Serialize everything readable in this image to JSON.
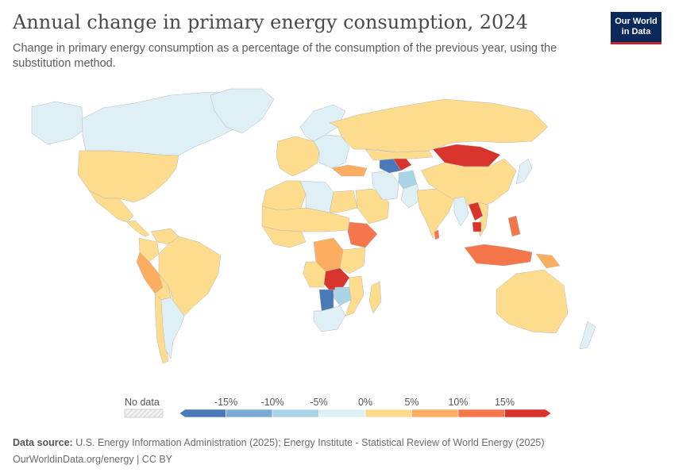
{
  "title": "Annual change in primary energy consumption, 2024",
  "subtitle": "Change in primary energy consumption as a percentage of the consumption of the previous year, using the substitution method.",
  "logo": {
    "line1": "Our World",
    "line2": "in Data"
  },
  "legend": {
    "no_data_label": "No data",
    "ticks": [
      "-15%",
      "-10%",
      "-5%",
      "0%",
      "5%",
      "10%",
      "15%"
    ],
    "bins": [
      {
        "label": "below -15%",
        "color": "#4a79b8"
      },
      {
        "label": "-15% to -10%",
        "color": "#7aaad3"
      },
      {
        "label": "-10% to -5%",
        "color": "#a9d4e6"
      },
      {
        "label": "-5% to 0%",
        "color": "#def0f6"
      },
      {
        "label": "0% to 5%",
        "color": "#fddc8e"
      },
      {
        "label": "5% to 10%",
        "color": "#fcad5f"
      },
      {
        "label": "10% to 15%",
        "color": "#f4764a"
      },
      {
        "label": "above 15%",
        "color": "#d9342b"
      }
    ]
  },
  "regions": [
    {
      "name": "Canada",
      "bin": 3
    },
    {
      "name": "Alaska",
      "bin": 3
    },
    {
      "name": "Greenland",
      "bin": 3
    },
    {
      "name": "United States",
      "bin": 4
    },
    {
      "name": "Mexico",
      "bin": 4
    },
    {
      "name": "Central America",
      "bin": 4
    },
    {
      "name": "Colombia",
      "bin": 4
    },
    {
      "name": "Venezuela",
      "bin": 4
    },
    {
      "name": "Brazil",
      "bin": 4
    },
    {
      "name": "Peru",
      "bin": 5
    },
    {
      "name": "Bolivia",
      "bin": 4
    },
    {
      "name": "Argentina",
      "bin": 3
    },
    {
      "name": "Chile",
      "bin": 4
    },
    {
      "name": "Western Europe",
      "bin": 4
    },
    {
      "name": "Scandinavia",
      "bin": 3
    },
    {
      "name": "Eastern Europe",
      "bin": 3
    },
    {
      "name": "Russia",
      "bin": 4
    },
    {
      "name": "Turkey",
      "bin": 5
    },
    {
      "name": "North Africa",
      "bin": 4
    },
    {
      "name": "Libya",
      "bin": 3
    },
    {
      "name": "Egypt",
      "bin": 4
    },
    {
      "name": "Sahel",
      "bin": 4
    },
    {
      "name": "West Africa",
      "bin": 4
    },
    {
      "name": "Ethiopia",
      "bin": 6
    },
    {
      "name": "DR Congo",
      "bin": 5
    },
    {
      "name": "Zambia",
      "bin": 7
    },
    {
      "name": "Zimbabwe",
      "bin": 2
    },
    {
      "name": "Botswana",
      "bin": 0
    },
    {
      "name": "South Africa",
      "bin": 3
    },
    {
      "name": "Madagascar",
      "bin": 4
    },
    {
      "name": "Saudi Arabia",
      "bin": 4
    },
    {
      "name": "Iran",
      "bin": 3
    },
    {
      "name": "Turkmenistan",
      "bin": 0
    },
    {
      "name": "Uzbekistan",
      "bin": 7
    },
    {
      "name": "Afghanistan",
      "bin": 2
    },
    {
      "name": "Pakistan",
      "bin": 3
    },
    {
      "name": "India",
      "bin": 4
    },
    {
      "name": "Sri Lanka",
      "bin": 6
    },
    {
      "name": "Mongolia",
      "bin": 7
    },
    {
      "name": "China",
      "bin": 4
    },
    {
      "name": "Japan",
      "bin": 3
    },
    {
      "name": "Myanmar",
      "bin": 3
    },
    {
      "name": "Laos",
      "bin": 7
    },
    {
      "name": "Vietnam",
      "bin": 4
    },
    {
      "name": "Cambodia",
      "bin": 7
    },
    {
      "name": "Philippines",
      "bin": 6
    },
    {
      "name": "Indonesia",
      "bin": 6
    },
    {
      "name": "Papua New Guinea",
      "bin": 5
    },
    {
      "name": "Australia",
      "bin": 4
    },
    {
      "name": "New Zealand",
      "bin": 3
    }
  ],
  "footer": {
    "source_label": "Data source:",
    "source_text": "U.S. Energy Information Administration (2025); Energy Institute - Statistical Review of World Energy (2025)",
    "credit": "OurWorldinData.org/energy | CC BY"
  }
}
